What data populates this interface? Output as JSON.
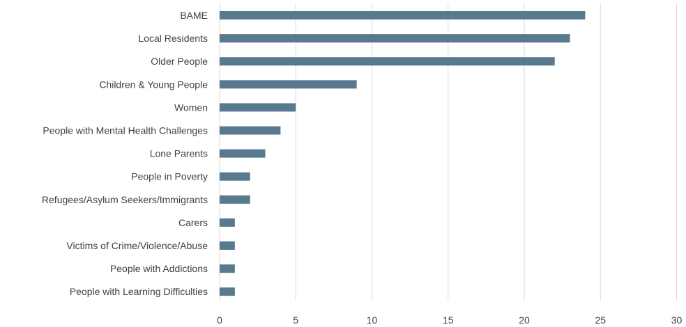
{
  "chart_data": {
    "type": "bar",
    "orientation": "horizontal",
    "title": "",
    "xlabel": "",
    "ylabel": "",
    "categories": [
      "BAME",
      "Local Residents",
      "Older People",
      "Children & Young People",
      "Women",
      "People with Mental Health Challenges",
      "Lone Parents",
      "People in Poverty",
      "Refugees/Asylum Seekers/Immigrants",
      "Carers",
      "Victims of Crime/Violence/Abuse",
      "People with Addictions",
      "People with Learning Difficulties"
    ],
    "values": [
      24,
      23,
      22,
      9,
      5,
      4,
      3,
      2,
      2,
      1,
      1,
      1,
      1
    ],
    "xlim": [
      0,
      30
    ],
    "xticks": [
      "0",
      "5",
      "10",
      "15",
      "20",
      "25",
      "30"
    ],
    "grid": "vertical",
    "legend": "none",
    "bar_color": "#587a8f"
  }
}
